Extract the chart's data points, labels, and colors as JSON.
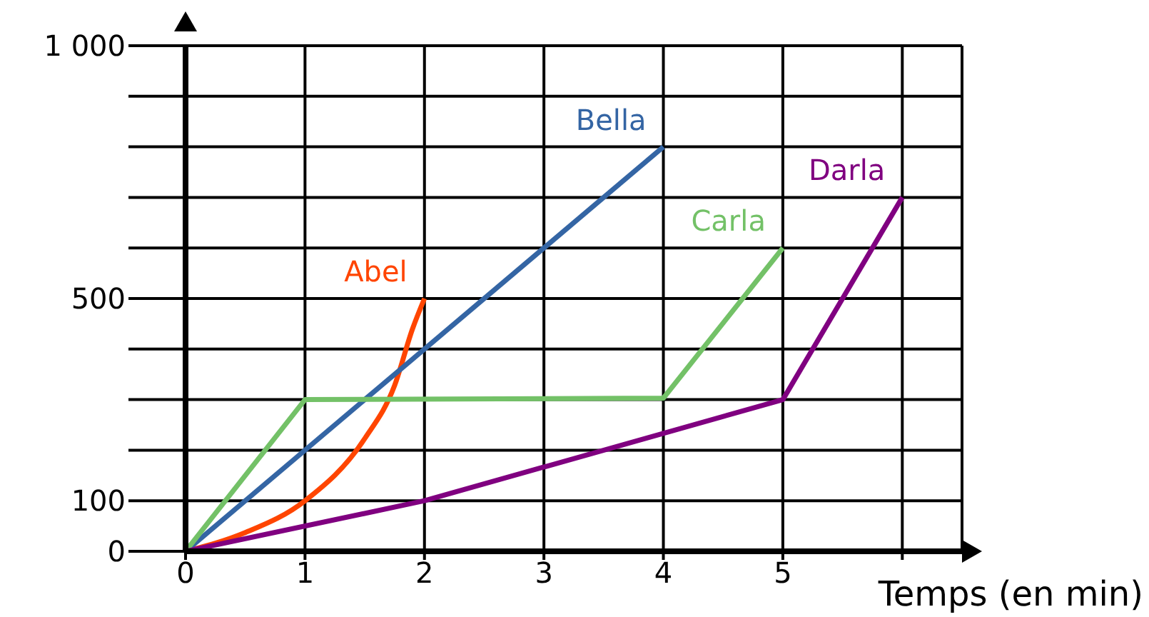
{
  "chart_data": {
    "type": "line",
    "xlabel": "Temps (en min)",
    "xlim": [
      0,
      6.5
    ],
    "xticks": [
      0,
      1,
      2,
      3,
      4,
      5,
      {
        "value": 6,
        "label": null
      }
    ],
    "ylim": [
      0,
      1000
    ],
    "yticks": [
      0,
      100,
      {
        "value": 200,
        "label": null
      },
      {
        "value": 300,
        "label": null
      },
      {
        "value": 400,
        "label": null
      },
      500,
      {
        "value": 600,
        "label": null
      },
      {
        "value": 700,
        "label": null
      },
      {
        "value": 800,
        "label": null
      },
      {
        "value": 900,
        "label": null
      },
      {
        "value": 1000,
        "label": "1 000"
      }
    ],
    "grid": true,
    "marker": "none",
    "line_style": "solid",
    "series": [
      {
        "name": "Abel",
        "color": "#ff4500",
        "x": [
          0,
          0.5,
          1,
          1.5,
          1.75,
          1.9,
          2
        ],
        "values": [
          0,
          37,
          100,
          223,
          328,
          440,
          500
        ]
      },
      {
        "name": "Bella",
        "color": "#3465a4",
        "x": [
          0,
          4
        ],
        "values": [
          0,
          800
        ]
      },
      {
        "name": "Carla",
        "color": "#73c167",
        "x": [
          0,
          1,
          4,
          5
        ],
        "values": [
          0,
          300,
          303,
          600
        ]
      },
      {
        "name": "Darla",
        "color": "#800080",
        "x": [
          0,
          2,
          5,
          6
        ],
        "values": [
          0,
          100,
          300,
          700
        ]
      }
    ]
  }
}
